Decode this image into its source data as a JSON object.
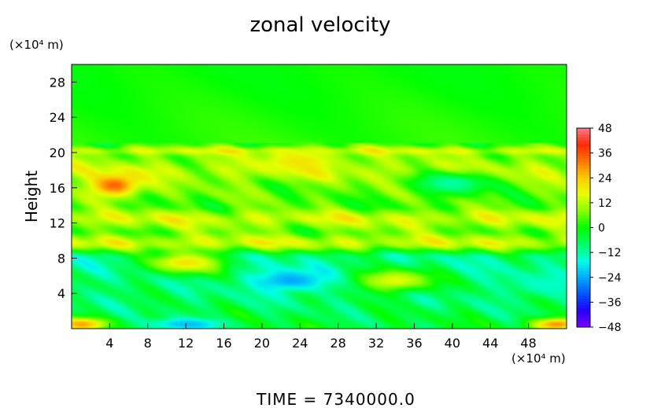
{
  "chart_data": {
    "type": "heatmap",
    "title": "zonal velocity",
    "ylabel": "Height",
    "x_unit": "(×10⁴ m)",
    "y_unit": "(×10⁴ m)",
    "xlim": [
      0,
      52
    ],
    "ylim": [
      0,
      30
    ],
    "x_ticks": [
      4,
      8,
      12,
      16,
      20,
      24,
      28,
      32,
      36,
      40,
      44,
      48
    ],
    "y_ticks": [
      4,
      8,
      12,
      16,
      20,
      24,
      28
    ],
    "colorbar": {
      "min": -48,
      "max": 48,
      "ticks": [
        48,
        36,
        24,
        12,
        0,
        -12,
        -24,
        -36,
        -48
      ],
      "colors": [
        "#7a00ff",
        "#2200ff",
        "#0055ff",
        "#00aaff",
        "#00ffe6",
        "#00ff66",
        "#00ff00",
        "#88ff00",
        "#e6ff00",
        "#ffcc00",
        "#ff7700",
        "#ff2a00",
        "#ff7a8a"
      ]
    },
    "field_description_features": [
      {
        "x": 4.5,
        "y": 16.3,
        "value": 34
      },
      {
        "x": 23,
        "y": 5.5,
        "value": -24
      },
      {
        "x": 12,
        "y": 7.5,
        "value": 20
      },
      {
        "x": 34,
        "y": 5.5,
        "value": 16
      },
      {
        "x": 24,
        "y": 19,
        "value": 20
      },
      {
        "x": 12,
        "y": 0.5,
        "value": -22
      },
      {
        "x": 1,
        "y": 0.5,
        "value": 28
      },
      {
        "x": 51,
        "y": 0.5,
        "value": 30
      },
      {
        "x": 40,
        "y": 16.5,
        "value": -12
      },
      {
        "x": 50,
        "y": 5,
        "value": -14
      }
    ],
    "profile_by_height": [
      {
        "y": 0,
        "value": -4
      },
      {
        "y": 4,
        "value": -8
      },
      {
        "y": 8,
        "value": -10
      },
      {
        "y": 9.8,
        "value": 14
      },
      {
        "y": 11,
        "value": 6
      },
      {
        "y": 12.5,
        "value": 14
      },
      {
        "y": 14,
        "value": 4
      },
      {
        "y": 16,
        "value": 6
      },
      {
        "y": 18,
        "value": 12
      },
      {
        "y": 19.5,
        "value": 8
      },
      {
        "y": 20.2,
        "value": 14
      },
      {
        "y": 21,
        "value": 2
      },
      {
        "y": 30,
        "value": 0
      }
    ]
  },
  "footer_text": "TIME  =  7340000.0"
}
